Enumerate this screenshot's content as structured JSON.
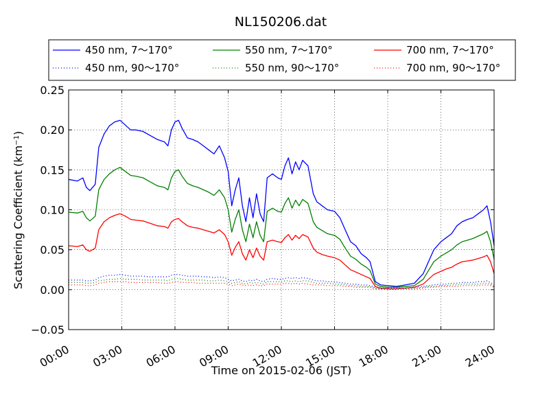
{
  "chart_data": {
    "type": "line",
    "title": "NL150206.dat",
    "xlabel": "Time on 2015-02-06 (JST)",
    "ylabel": "Scattering Coefficient (km",
    "ylabel_sup": "−1",
    "ylabel_close": ")",
    "xlim": [
      "00:00",
      "24:00"
    ],
    "ylim": [
      -0.05,
      0.25
    ],
    "x_ticks": [
      "00:00",
      "03:00",
      "06:00",
      "09:00",
      "12:00",
      "15:00",
      "18:00",
      "21:00",
      "24:00"
    ],
    "y_ticks": [
      "−0.05",
      "0.00",
      "0.05",
      "0.10",
      "0.15",
      "0.20",
      "0.25"
    ],
    "grid": true,
    "legend_position": "top, above plot",
    "x_hours": [
      0,
      0.5,
      0.8,
      1.0,
      1.2,
      1.5,
      1.7,
      2.0,
      2.3,
      2.6,
      2.9,
      3.2,
      3.5,
      3.8,
      4.2,
      4.6,
      5.0,
      5.4,
      5.6,
      5.8,
      6.0,
      6.2,
      6.4,
      6.7,
      7.0,
      7.3,
      7.6,
      7.9,
      8.2,
      8.5,
      8.8,
      9.0,
      9.2,
      9.4,
      9.6,
      9.8,
      10.0,
      10.2,
      10.4,
      10.6,
      10.8,
      11.0,
      11.2,
      11.5,
      11.8,
      12.0,
      12.2,
      12.4,
      12.6,
      12.8,
      13.0,
      13.2,
      13.5,
      13.8,
      14.0,
      14.3,
      14.6,
      15.0,
      15.3,
      15.6,
      15.9,
      16.2,
      16.5,
      16.8,
      17.0,
      17.3,
      17.6,
      18.0,
      18.5,
      19.0,
      19.5,
      20.0,
      20.3,
      20.6,
      21.0,
      21.3,
      21.6,
      21.9,
      22.2,
      22.5,
      22.8,
      23.1,
      23.4,
      23.6,
      23.8,
      24.0
    ],
    "series": [
      {
        "name": "450 nm, 7～170°",
        "color": "#0000ff",
        "style": "solid",
        "values": [
          0.138,
          0.136,
          0.14,
          0.128,
          0.124,
          0.132,
          0.178,
          0.195,
          0.205,
          0.21,
          0.212,
          0.206,
          0.2,
          0.2,
          0.198,
          0.193,
          0.188,
          0.185,
          0.18,
          0.2,
          0.21,
          0.212,
          0.202,
          0.19,
          0.188,
          0.185,
          0.18,
          0.175,
          0.17,
          0.18,
          0.165,
          0.148,
          0.105,
          0.125,
          0.14,
          0.105,
          0.085,
          0.115,
          0.09,
          0.12,
          0.095,
          0.085,
          0.14,
          0.145,
          0.14,
          0.138,
          0.155,
          0.165,
          0.145,
          0.16,
          0.15,
          0.162,
          0.155,
          0.12,
          0.11,
          0.105,
          0.1,
          0.098,
          0.09,
          0.075,
          0.06,
          0.055,
          0.045,
          0.04,
          0.035,
          0.01,
          0.006,
          0.005,
          0.004,
          0.006,
          0.008,
          0.02,
          0.035,
          0.05,
          0.06,
          0.065,
          0.07,
          0.08,
          0.085,
          0.088,
          0.09,
          0.095,
          0.1,
          0.105,
          0.085,
          0.055
        ]
      },
      {
        "name": "550 nm, 7～170°",
        "color": "#008000",
        "style": "solid",
        "values": [
          0.097,
          0.096,
          0.098,
          0.09,
          0.086,
          0.092,
          0.125,
          0.138,
          0.145,
          0.15,
          0.153,
          0.148,
          0.143,
          0.142,
          0.14,
          0.135,
          0.13,
          0.128,
          0.125,
          0.14,
          0.148,
          0.15,
          0.142,
          0.133,
          0.13,
          0.128,
          0.125,
          0.122,
          0.118,
          0.125,
          0.115,
          0.1,
          0.072,
          0.088,
          0.1,
          0.075,
          0.06,
          0.082,
          0.065,
          0.085,
          0.068,
          0.06,
          0.098,
          0.102,
          0.098,
          0.097,
          0.108,
          0.115,
          0.102,
          0.112,
          0.105,
          0.113,
          0.108,
          0.085,
          0.078,
          0.074,
          0.07,
          0.068,
          0.063,
          0.052,
          0.042,
          0.038,
          0.032,
          0.028,
          0.024,
          0.007,
          0.004,
          0.003,
          0.003,
          0.004,
          0.005,
          0.013,
          0.024,
          0.035,
          0.042,
          0.046,
          0.05,
          0.056,
          0.06,
          0.062,
          0.064,
          0.067,
          0.07,
          0.073,
          0.06,
          0.038
        ]
      },
      {
        "name": "700 nm, 7～170°",
        "color": "#ff0000",
        "style": "solid",
        "values": [
          0.055,
          0.054,
          0.056,
          0.05,
          0.048,
          0.052,
          0.075,
          0.085,
          0.09,
          0.093,
          0.095,
          0.092,
          0.088,
          0.087,
          0.086,
          0.083,
          0.08,
          0.079,
          0.077,
          0.085,
          0.088,
          0.089,
          0.085,
          0.08,
          0.078,
          0.077,
          0.075,
          0.073,
          0.071,
          0.075,
          0.069,
          0.06,
          0.043,
          0.053,
          0.06,
          0.045,
          0.037,
          0.05,
          0.04,
          0.052,
          0.042,
          0.037,
          0.06,
          0.062,
          0.06,
          0.059,
          0.065,
          0.069,
          0.062,
          0.068,
          0.064,
          0.069,
          0.066,
          0.052,
          0.047,
          0.044,
          0.042,
          0.04,
          0.037,
          0.031,
          0.025,
          0.022,
          0.019,
          0.016,
          0.014,
          0.004,
          0.002,
          0.001,
          0.001,
          0.002,
          0.003,
          0.007,
          0.013,
          0.019,
          0.023,
          0.026,
          0.028,
          0.032,
          0.035,
          0.036,
          0.037,
          0.039,
          0.041,
          0.043,
          0.035,
          0.02
        ]
      },
      {
        "name": "450 nm, 90～170°",
        "color": "#0000ff",
        "style": "dotted",
        "values": [
          0.012,
          0.012,
          0.012,
          0.011,
          0.011,
          0.012,
          0.015,
          0.017,
          0.018,
          0.018,
          0.019,
          0.018,
          0.017,
          0.017,
          0.017,
          0.016,
          0.016,
          0.016,
          0.016,
          0.018,
          0.019,
          0.019,
          0.018,
          0.017,
          0.017,
          0.017,
          0.016,
          0.016,
          0.015,
          0.016,
          0.015,
          0.013,
          0.011,
          0.012,
          0.013,
          0.011,
          0.01,
          0.012,
          0.011,
          0.013,
          0.011,
          0.01,
          0.013,
          0.014,
          0.013,
          0.013,
          0.014,
          0.015,
          0.014,
          0.015,
          0.014,
          0.015,
          0.014,
          0.012,
          0.011,
          0.011,
          0.01,
          0.01,
          0.009,
          0.008,
          0.007,
          0.007,
          0.006,
          0.006,
          0.005,
          0.003,
          0.002,
          0.002,
          0.002,
          0.002,
          0.003,
          0.004,
          0.005,
          0.006,
          0.007,
          0.007,
          0.008,
          0.008,
          0.009,
          0.009,
          0.009,
          0.01,
          0.01,
          0.011,
          0.009,
          0.006
        ]
      },
      {
        "name": "550 nm, 90～170°",
        "color": "#008000",
        "style": "dotted",
        "values": [
          0.009,
          0.009,
          0.009,
          0.008,
          0.008,
          0.009,
          0.011,
          0.012,
          0.013,
          0.013,
          0.014,
          0.013,
          0.013,
          0.013,
          0.012,
          0.012,
          0.012,
          0.012,
          0.011,
          0.013,
          0.014,
          0.014,
          0.013,
          0.012,
          0.012,
          0.012,
          0.012,
          0.011,
          0.011,
          0.012,
          0.011,
          0.01,
          0.008,
          0.009,
          0.01,
          0.008,
          0.007,
          0.009,
          0.008,
          0.009,
          0.008,
          0.007,
          0.01,
          0.01,
          0.01,
          0.01,
          0.011,
          0.011,
          0.01,
          0.011,
          0.01,
          0.011,
          0.011,
          0.009,
          0.008,
          0.008,
          0.008,
          0.007,
          0.007,
          0.006,
          0.005,
          0.005,
          0.004,
          0.004,
          0.004,
          0.002,
          0.001,
          0.001,
          0.001,
          0.002,
          0.002,
          0.003,
          0.004,
          0.004,
          0.005,
          0.005,
          0.006,
          0.006,
          0.007,
          0.007,
          0.007,
          0.007,
          0.008,
          0.008,
          0.007,
          0.004
        ]
      },
      {
        "name": "700 nm, 90～170°",
        "color": "#ff0000",
        "style": "dotted",
        "values": [
          0.006,
          0.006,
          0.006,
          0.005,
          0.005,
          0.006,
          0.008,
          0.009,
          0.01,
          0.01,
          0.01,
          0.01,
          0.009,
          0.009,
          0.009,
          0.009,
          0.009,
          0.008,
          0.008,
          0.009,
          0.01,
          0.01,
          0.009,
          0.009,
          0.009,
          0.008,
          0.008,
          0.008,
          0.008,
          0.008,
          0.008,
          0.007,
          0.005,
          0.006,
          0.007,
          0.006,
          0.005,
          0.006,
          0.005,
          0.006,
          0.005,
          0.005,
          0.007,
          0.007,
          0.007,
          0.007,
          0.008,
          0.008,
          0.007,
          0.008,
          0.007,
          0.008,
          0.007,
          0.006,
          0.006,
          0.006,
          0.005,
          0.005,
          0.005,
          0.004,
          0.004,
          0.003,
          0.003,
          0.003,
          0.003,
          0.001,
          0.001,
          0.001,
          0.001,
          0.001,
          0.001,
          0.002,
          0.003,
          0.003,
          0.004,
          0.004,
          0.004,
          0.004,
          0.005,
          0.005,
          0.005,
          0.005,
          0.006,
          0.006,
          0.005,
          0.003
        ]
      }
    ]
  }
}
